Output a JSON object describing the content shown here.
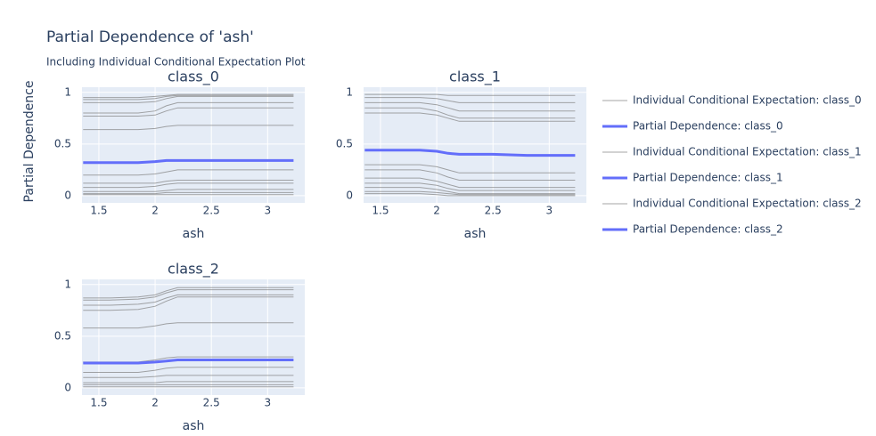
{
  "title": "Partial Dependence of 'ash'",
  "subtitle": "Including Individual Conditional Expectation Plot",
  "chart_data": [
    {
      "type": "line",
      "title": "class_0",
      "xlabel": "ash",
      "ylabel": "Partial Dependence",
      "x": [
        1.36,
        1.6,
        1.85,
        2.0,
        2.1,
        2.2,
        2.5,
        2.8,
        3.0,
        3.23
      ],
      "xlim": [
        1.35,
        3.33
      ],
      "ylim": [
        -0.07,
        1.05
      ],
      "xticks": [
        1.5,
        2,
        2.5,
        3
      ],
      "yticks": [
        0,
        0.5,
        1
      ],
      "grid": true,
      "ice": {
        "name": "Individual Conditional Expectation: class_0",
        "color": "#808080",
        "lines": [
          [
            0.95,
            0.95,
            0.95,
            0.96,
            0.97,
            0.98,
            0.98,
            0.98,
            0.98,
            0.98
          ],
          [
            0.93,
            0.93,
            0.93,
            0.94,
            0.96,
            0.97,
            0.97,
            0.97,
            0.97,
            0.97
          ],
          [
            0.9,
            0.9,
            0.9,
            0.91,
            0.94,
            0.96,
            0.96,
            0.96,
            0.96,
            0.96
          ],
          [
            0.8,
            0.8,
            0.8,
            0.82,
            0.87,
            0.9,
            0.9,
            0.9,
            0.9,
            0.9
          ],
          [
            0.77,
            0.77,
            0.77,
            0.78,
            0.82,
            0.85,
            0.85,
            0.85,
            0.85,
            0.85
          ],
          [
            0.64,
            0.64,
            0.64,
            0.65,
            0.67,
            0.68,
            0.68,
            0.68,
            0.68,
            0.68
          ],
          [
            0.2,
            0.2,
            0.2,
            0.21,
            0.23,
            0.25,
            0.25,
            0.25,
            0.25,
            0.25
          ],
          [
            0.12,
            0.12,
            0.12,
            0.12,
            0.14,
            0.15,
            0.15,
            0.15,
            0.15,
            0.15
          ],
          [
            0.08,
            0.08,
            0.08,
            0.09,
            0.11,
            0.12,
            0.12,
            0.12,
            0.12,
            0.12
          ],
          [
            0.04,
            0.04,
            0.04,
            0.04,
            0.05,
            0.06,
            0.06,
            0.06,
            0.06,
            0.06
          ],
          [
            0.02,
            0.02,
            0.02,
            0.02,
            0.03,
            0.03,
            0.03,
            0.03,
            0.03,
            0.03
          ],
          [
            0.01,
            0.01,
            0.01,
            0.01,
            0.01,
            0.01,
            0.01,
            0.01,
            0.01,
            0.01
          ]
        ]
      },
      "pd": {
        "name": "Partial Dependence: class_0",
        "color": "#636efa",
        "values": [
          0.32,
          0.32,
          0.32,
          0.33,
          0.34,
          0.34,
          0.34,
          0.34,
          0.34,
          0.34
        ]
      }
    },
    {
      "type": "line",
      "title": "class_1",
      "xlabel": "ash",
      "x": [
        1.36,
        1.6,
        1.85,
        2.0,
        2.1,
        2.2,
        2.5,
        2.8,
        3.0,
        3.23
      ],
      "xlim": [
        1.35,
        3.33
      ],
      "ylim": [
        -0.07,
        1.05
      ],
      "xticks": [
        1.5,
        2,
        2.5,
        3
      ],
      "yticks": [
        0,
        0.5,
        1
      ],
      "grid": true,
      "ice": {
        "name": "Individual Conditional Expectation: class_1",
        "color": "#808080",
        "lines": [
          [
            0.98,
            0.98,
            0.98,
            0.98,
            0.97,
            0.97,
            0.97,
            0.97,
            0.97,
            0.97
          ],
          [
            0.95,
            0.95,
            0.95,
            0.94,
            0.92,
            0.9,
            0.9,
            0.9,
            0.9,
            0.9
          ],
          [
            0.9,
            0.9,
            0.9,
            0.88,
            0.85,
            0.82,
            0.82,
            0.82,
            0.82,
            0.82
          ],
          [
            0.85,
            0.85,
            0.85,
            0.82,
            0.78,
            0.75,
            0.75,
            0.75,
            0.75,
            0.75
          ],
          [
            0.8,
            0.8,
            0.8,
            0.78,
            0.75,
            0.72,
            0.72,
            0.72,
            0.72,
            0.72
          ],
          [
            0.3,
            0.3,
            0.3,
            0.28,
            0.25,
            0.22,
            0.22,
            0.22,
            0.22,
            0.22
          ],
          [
            0.25,
            0.25,
            0.25,
            0.22,
            0.18,
            0.15,
            0.15,
            0.15,
            0.15,
            0.15
          ],
          [
            0.17,
            0.17,
            0.17,
            0.14,
            0.11,
            0.08,
            0.08,
            0.08,
            0.08,
            0.08
          ],
          [
            0.12,
            0.12,
            0.12,
            0.1,
            0.07,
            0.05,
            0.05,
            0.05,
            0.05,
            0.05
          ],
          [
            0.08,
            0.08,
            0.08,
            0.06,
            0.04,
            0.02,
            0.02,
            0.02,
            0.02,
            0.02
          ],
          [
            0.04,
            0.04,
            0.04,
            0.03,
            0.02,
            0.01,
            0.01,
            0.01,
            0.01,
            0.01
          ],
          [
            0.02,
            0.02,
            0.02,
            0.01,
            0.0,
            0.0,
            0.0,
            0.0,
            0.0,
            0.0
          ]
        ]
      },
      "pd": {
        "name": "Partial Dependence: class_1",
        "color": "#636efa",
        "values": [
          0.44,
          0.44,
          0.44,
          0.43,
          0.41,
          0.4,
          0.4,
          0.39,
          0.39,
          0.39
        ]
      }
    },
    {
      "type": "line",
      "title": "class_2",
      "xlabel": "ash",
      "x": [
        1.36,
        1.6,
        1.85,
        2.0,
        2.1,
        2.2,
        2.5,
        2.8,
        3.0,
        3.23
      ],
      "xlim": [
        1.35,
        3.33
      ],
      "ylim": [
        -0.07,
        1.05
      ],
      "xticks": [
        1.5,
        2,
        2.5,
        3
      ],
      "yticks": [
        0,
        0.5,
        1
      ],
      "grid": true,
      "ice": {
        "name": "Individual Conditional Expectation: class_2",
        "color": "#808080",
        "lines": [
          [
            0.87,
            0.87,
            0.88,
            0.9,
            0.94,
            0.97,
            0.97,
            0.97,
            0.97,
            0.97
          ],
          [
            0.85,
            0.85,
            0.86,
            0.88,
            0.92,
            0.95,
            0.95,
            0.95,
            0.95,
            0.95
          ],
          [
            0.8,
            0.8,
            0.81,
            0.83,
            0.87,
            0.9,
            0.9,
            0.9,
            0.9,
            0.9
          ],
          [
            0.75,
            0.75,
            0.76,
            0.79,
            0.84,
            0.88,
            0.88,
            0.88,
            0.88,
            0.88
          ],
          [
            0.58,
            0.58,
            0.58,
            0.6,
            0.62,
            0.63,
            0.63,
            0.63,
            0.63,
            0.63
          ],
          [
            0.25,
            0.25,
            0.25,
            0.27,
            0.29,
            0.3,
            0.3,
            0.3,
            0.3,
            0.3
          ],
          [
            0.15,
            0.15,
            0.15,
            0.17,
            0.19,
            0.2,
            0.2,
            0.2,
            0.2,
            0.2
          ],
          [
            0.1,
            0.1,
            0.1,
            0.11,
            0.12,
            0.12,
            0.12,
            0.12,
            0.12,
            0.12
          ],
          [
            0.05,
            0.05,
            0.05,
            0.05,
            0.06,
            0.06,
            0.06,
            0.06,
            0.06,
            0.06
          ],
          [
            0.03,
            0.03,
            0.03,
            0.03,
            0.03,
            0.03,
            0.03,
            0.03,
            0.03,
            0.03
          ],
          [
            0.01,
            0.01,
            0.01,
            0.01,
            0.01,
            0.01,
            0.01,
            0.01,
            0.01,
            0.01
          ]
        ]
      },
      "pd": {
        "name": "Partial Dependence: class_2",
        "color": "#636efa",
        "values": [
          0.24,
          0.24,
          0.24,
          0.25,
          0.26,
          0.27,
          0.27,
          0.27,
          0.27,
          0.27
        ]
      }
    }
  ]
}
